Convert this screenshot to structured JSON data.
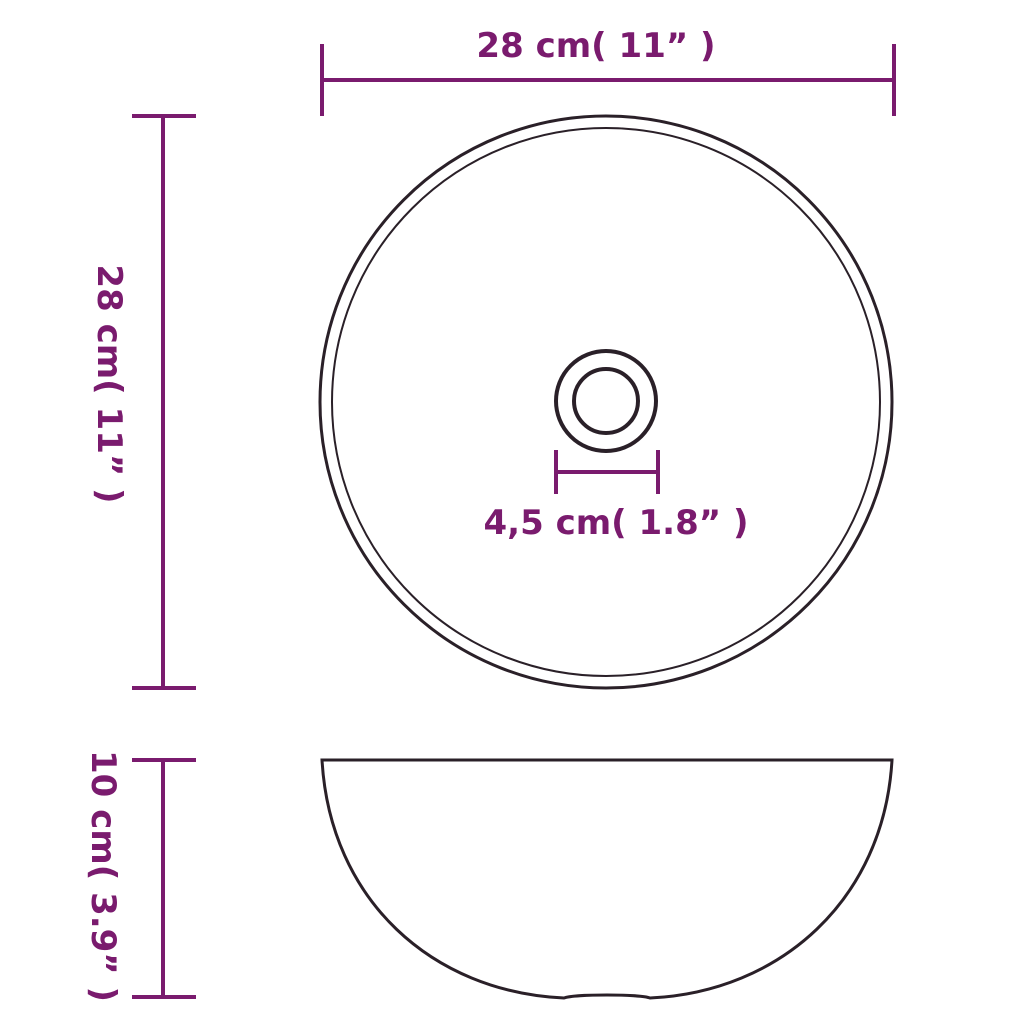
{
  "colors": {
    "dimension": "#7a1b6e",
    "outline": "#2a2028",
    "background": "#ffffff"
  },
  "dimensions": {
    "top_width": "28 cm( 11” )",
    "left_height": "28 cm( 11” )",
    "drain_width": "4,5 cm( 1.8” )",
    "bowl_height": "10 cm( 3.9” )"
  }
}
